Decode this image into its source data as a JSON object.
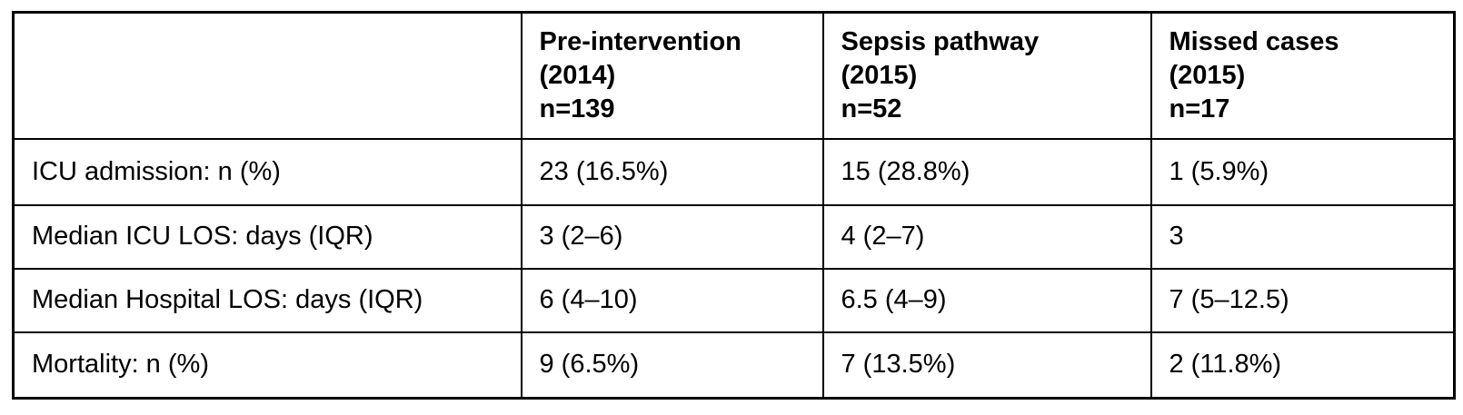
{
  "table": {
    "description": "Outcomes table comparing pre-intervention, sepsis pathway and missed cases groups",
    "border_color": "#000000",
    "text_color": "#000000",
    "background_color": "#ffffff",
    "header": [
      "",
      "Pre-intervention\n(2014)\nn=139",
      "Sepsis pathway\n(2015)\nn=52",
      "Missed cases\n(2015)\nn=17"
    ],
    "rows": [
      {
        "label": "ICU admission: n (%)",
        "values": [
          "23 (16.5%)",
          "15 (28.8%)",
          "1 (5.9%)"
        ]
      },
      {
        "label": "Median ICU LOS: days (IQR)",
        "values": [
          "3 (2–6)",
          "4 (2–7)",
          "3"
        ]
      },
      {
        "label": "Median Hospital LOS: days (IQR)",
        "values": [
          "6 (4–10)",
          "6.5 (4–9)",
          "7 (5–12.5)"
        ]
      },
      {
        "label": "Mortality: n (%)",
        "values": [
          "9 (6.5%)",
          "7 (13.5%)",
          "2 (11.8%)"
        ]
      }
    ]
  }
}
